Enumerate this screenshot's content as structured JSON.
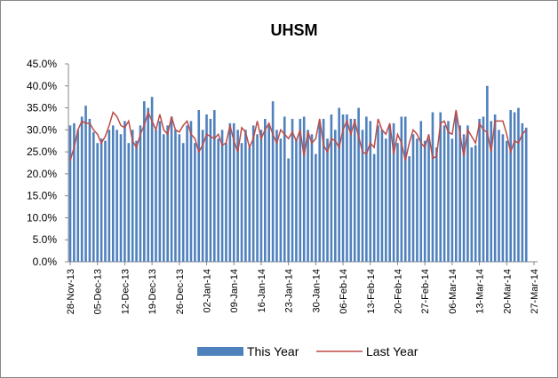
{
  "chart_data": {
    "type": "bar-line",
    "title": "UHSM",
    "categories": [
      "28-Nov-13",
      null,
      null,
      null,
      null,
      null,
      null,
      "05-Dec-13",
      null,
      null,
      null,
      null,
      null,
      null,
      "12-Dec-13",
      null,
      null,
      null,
      null,
      null,
      null,
      "19-Dec-13",
      null,
      null,
      null,
      null,
      null,
      null,
      "26-Dec-13",
      null,
      null,
      null,
      null,
      null,
      null,
      "02-Jan-14",
      null,
      null,
      null,
      null,
      null,
      null,
      "09-Jan-14",
      null,
      null,
      null,
      null,
      null,
      null,
      "16-Jan-14",
      null,
      null,
      null,
      null,
      null,
      null,
      "23-Jan-14",
      null,
      null,
      null,
      null,
      null,
      null,
      "30-Jan-14",
      null,
      null,
      null,
      null,
      null,
      null,
      "06-Feb-14",
      null,
      null,
      null,
      null,
      null,
      null,
      "13-Feb-14",
      null,
      null,
      null,
      null,
      null,
      null,
      "20-Feb-14",
      null,
      null,
      null,
      null,
      null,
      null,
      "27-Feb-14",
      null,
      null,
      null,
      null,
      null,
      null,
      "06-Mar-14",
      null,
      null,
      null,
      null,
      null,
      null,
      "13-Mar-14",
      null,
      null,
      null,
      null,
      null,
      null,
      "20-Mar-14",
      null,
      null,
      null,
      null,
      null,
      null,
      "27-Mar-14"
    ],
    "series": [
      {
        "name": "This Year",
        "kind": "bar",
        "color": "#4f81bd",
        "values": [
          31,
          31.5,
          30,
          33,
          35.5,
          32.5,
          29.5,
          27,
          28,
          27.5,
          30,
          31,
          30,
          29,
          32,
          27,
          30,
          27.5,
          31,
          36.5,
          35,
          37.5,
          30,
          32,
          29,
          31,
          33,
          30,
          29,
          27,
          31,
          32,
          27,
          34.5,
          30,
          33.5,
          32.5,
          34.5,
          28,
          30,
          27,
          31.5,
          31.5,
          30,
          27,
          30,
          26,
          31,
          29,
          30,
          32.5,
          31,
          36.5,
          30,
          28,
          33,
          23.5,
          32.5,
          28,
          32.5,
          33,
          30,
          29,
          24.5,
          32,
          32.5,
          28,
          33.5,
          30,
          35,
          33.5,
          33.5,
          32.5,
          32.5,
          35,
          30,
          33,
          32,
          24.5,
          31,
          30,
          28,
          31,
          31.5,
          27,
          33,
          33,
          24,
          29,
          28,
          32,
          27.5,
          28,
          34,
          26,
          34,
          31,
          32,
          28,
          34,
          31,
          29,
          31,
          26,
          26.5,
          32.5,
          33,
          40,
          32,
          33.5,
          30,
          29,
          27.5,
          34.5,
          34,
          35,
          31.5,
          30.5,
          null,
          null
        ]
      },
      {
        "name": "Last Year",
        "kind": "line",
        "color": "#be4b48",
        "values": [
          23,
          26,
          30,
          32,
          31.5,
          31.5,
          30,
          29,
          27,
          28.5,
          31,
          34,
          33,
          31,
          30.5,
          32,
          27.5,
          26,
          29,
          31,
          34,
          32,
          30,
          33.5,
          30,
          29,
          33,
          30,
          29.5,
          31,
          32,
          29,
          28,
          25,
          26.5,
          29,
          28.5,
          28,
          29,
          26.5,
          27,
          31,
          27.5,
          25,
          30.5,
          29.5,
          26,
          28,
          32,
          28,
          30,
          31.5,
          29,
          27,
          30,
          29,
          28,
          29.5,
          27.5,
          30,
          24,
          29.5,
          27,
          28,
          32.5,
          26.5,
          25,
          28,
          27.5,
          26,
          30,
          32,
          29,
          32,
          28.5,
          25,
          24.5,
          27,
          26,
          32.5,
          30,
          29,
          31.5,
          24.5,
          29,
          27,
          23,
          27,
          30,
          29,
          27,
          26,
          29,
          23.5,
          24,
          31.5,
          32,
          29.5,
          29,
          34.5,
          29,
          24,
          30,
          28.5,
          27,
          31.5,
          30,
          29.5,
          25,
          32,
          32,
          32,
          29,
          25,
          27.5,
          27,
          29,
          30,
          null,
          null
        ]
      }
    ],
    "ylim": [
      0,
      45
    ],
    "yticks": [
      {
        "value": 0,
        "label": "0.0%"
      },
      {
        "value": 5,
        "label": "5.0%"
      },
      {
        "value": 10,
        "label": "10.0%"
      },
      {
        "value": 15,
        "label": "15.0%"
      },
      {
        "value": 20,
        "label": "20.0%"
      },
      {
        "value": 25,
        "label": "25.0%"
      },
      {
        "value": 30,
        "label": "30.0%"
      },
      {
        "value": 35,
        "label": "35.0%"
      },
      {
        "value": 40,
        "label": "40.0%"
      },
      {
        "value": 45,
        "label": "45.0%"
      }
    ],
    "grid": false,
    "legend": "bottom"
  }
}
